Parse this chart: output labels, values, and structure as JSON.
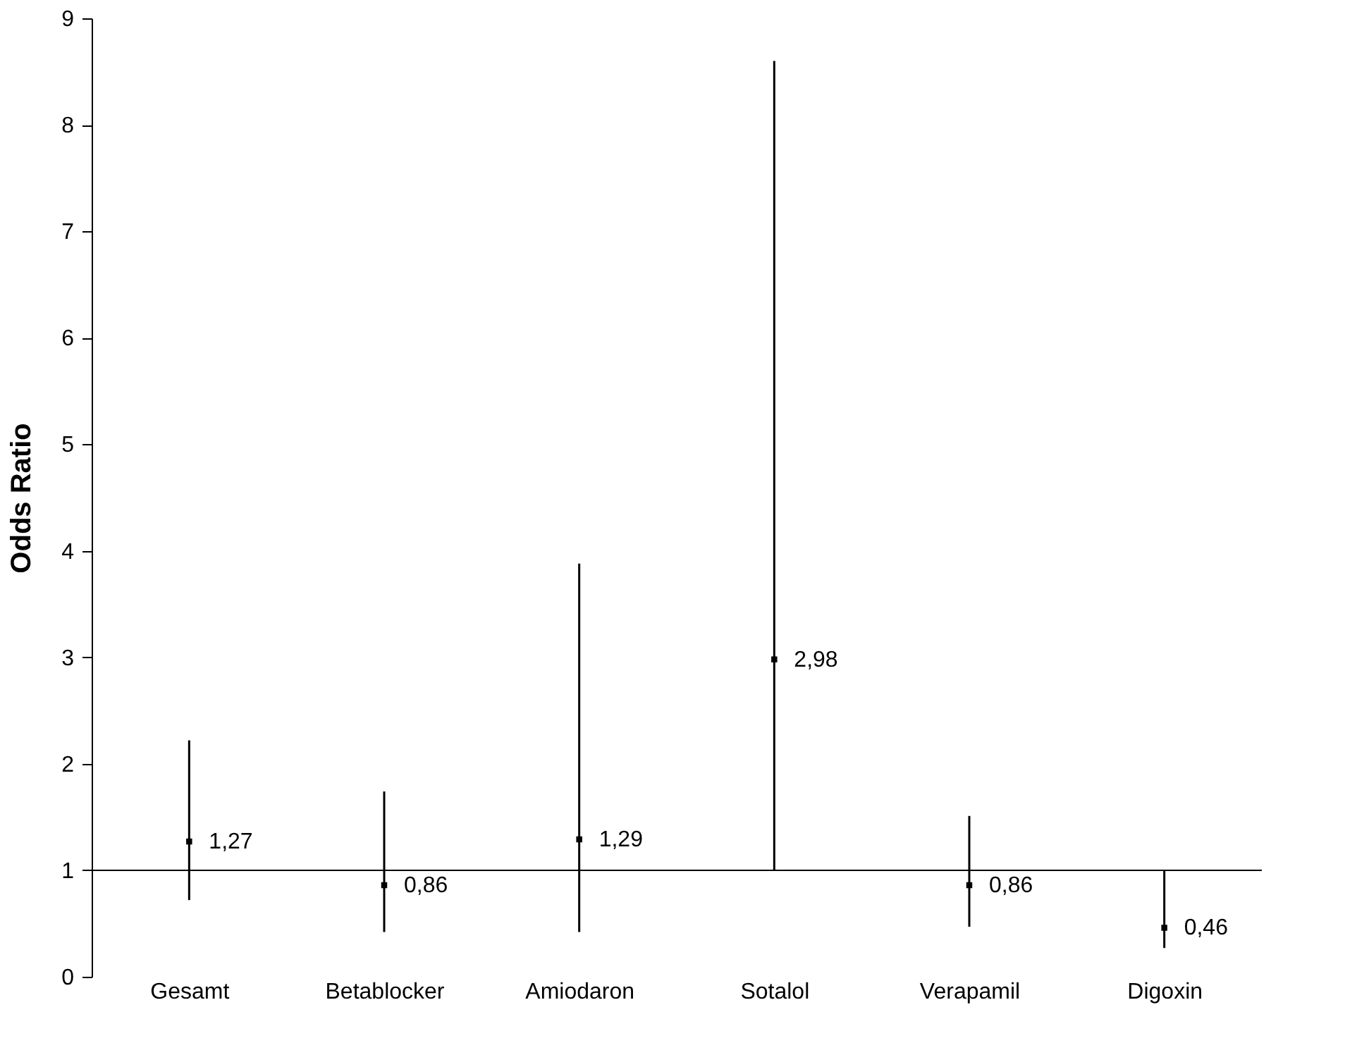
{
  "chart_data": {
    "type": "scatter",
    "ylabel": "Odds Ratio",
    "categories": [
      "Gesamt",
      "Betablocker",
      "Amiodaron",
      "Sotalol",
      "Verapamil",
      "Digoxin"
    ],
    "values": [
      1.27,
      0.86,
      1.29,
      2.98,
      0.86,
      0.46
    ],
    "errors": [
      [
        0.72,
        2.22
      ],
      [
        0.42,
        1.74
      ],
      [
        0.42,
        3.88
      ],
      [
        1.0,
        8.6
      ],
      [
        0.47,
        1.51
      ],
      [
        0.27,
        1.0
      ]
    ],
    "value_labels": [
      "1,27",
      "0,86",
      "1,29",
      "2,98",
      "0,86",
      "0,46"
    ],
    "color": "#000000",
    "marker": "square",
    "ylim": [
      0,
      9
    ],
    "yticks": [
      0,
      1,
      2,
      3,
      4,
      5,
      6,
      7,
      8,
      9
    ],
    "ref_lines": [
      {
        "axis": "y",
        "value": 1,
        "color": "#000000"
      }
    ],
    "grid": false
  }
}
